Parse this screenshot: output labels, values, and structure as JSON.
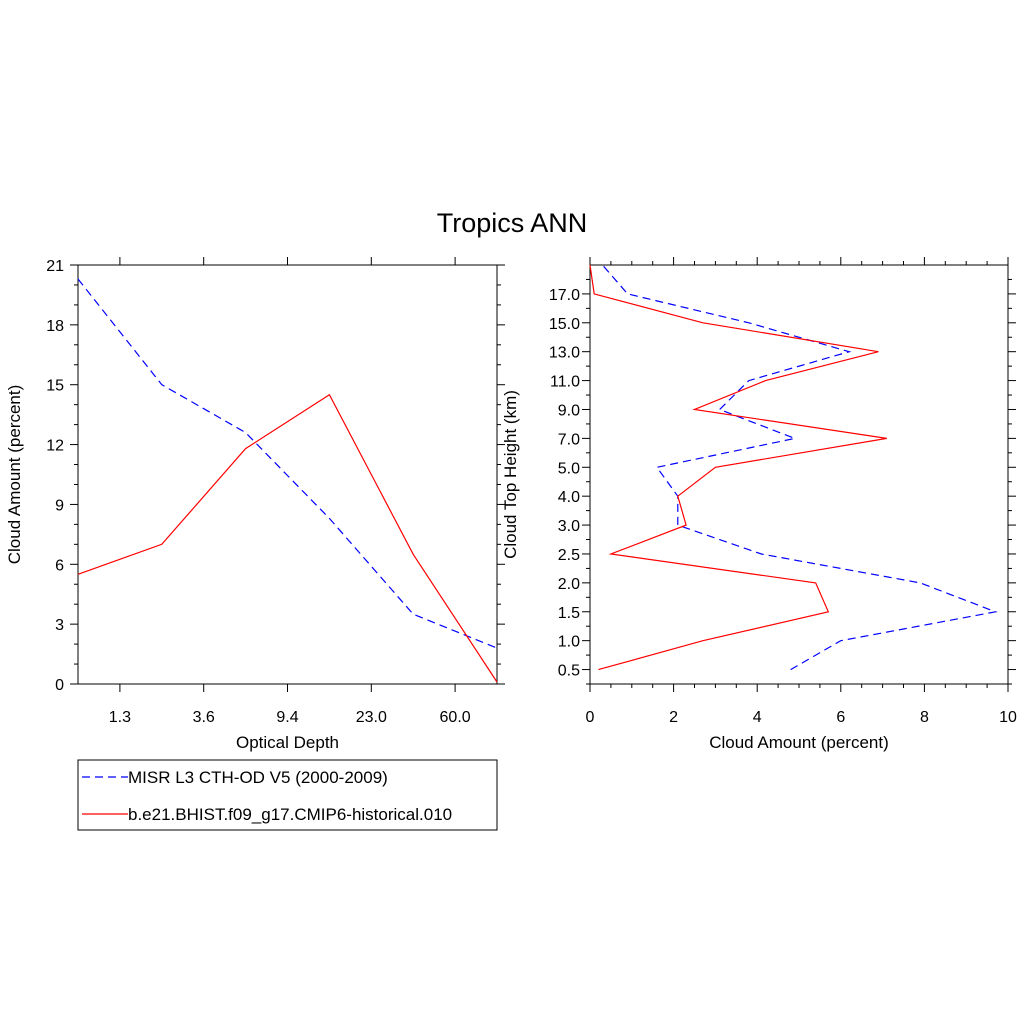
{
  "figure": {
    "title": "Tropics ANN"
  },
  "chart_data": [
    {
      "type": "line",
      "xlabel": "Optical Depth",
      "ylabel": "Cloud Amount (percent)",
      "x_positions": [
        0,
        1,
        2,
        3,
        4,
        5,
        6
      ],
      "x_ticks": [
        {
          "pos": 0.5,
          "label": "1.3"
        },
        {
          "pos": 1.5,
          "label": "3.6"
        },
        {
          "pos": 2.5,
          "label": "9.4"
        },
        {
          "pos": 3.5,
          "label": "23.0"
        },
        {
          "pos": 4.5,
          "label": "60.0"
        }
      ],
      "xlim": [
        0,
        5
      ],
      "ylim": [
        0,
        21
      ],
      "y_ticks": [
        0,
        3,
        6,
        9,
        12,
        15,
        18,
        21
      ],
      "series": [
        {
          "style": "dashed",
          "color": "#0000ff",
          "values": [
            [
              0,
              20.3
            ],
            [
              1,
              15.0
            ],
            [
              2,
              12.6
            ],
            [
              3,
              8.3
            ],
            [
              4,
              3.5
            ],
            [
              5,
              1.8
            ]
          ]
        },
        {
          "style": "solid",
          "color": "#ff0000",
          "values": [
            [
              0,
              5.5
            ],
            [
              1,
              7.0
            ],
            [
              2,
              11.8
            ],
            [
              3,
              14.5
            ],
            [
              4,
              6.5
            ],
            [
              5,
              0.1
            ]
          ]
        }
      ]
    },
    {
      "type": "line",
      "xlabel": "Cloud Amount (percent)",
      "ylabel": "Cloud Top Height (km)",
      "xlim": [
        0,
        10
      ],
      "x_ticks": [
        0,
        2,
        4,
        6,
        8,
        10
      ],
      "y_ticks": [
        "0.5",
        "1.0",
        "1.5",
        "2.0",
        "2.5",
        "3.0",
        "4.0",
        "5.0",
        "7.0",
        "9.0",
        "11.0",
        "13.0",
        "15.0",
        "17.0"
      ],
      "series": [
        {
          "style": "dashed",
          "color": "#0000ff",
          "values": [
            [
              4.8,
              0.25
            ],
            [
              6.0,
              0.75
            ],
            [
              9.7,
              1.25
            ],
            [
              7.9,
              1.75
            ],
            [
              4.1,
              2.25
            ],
            [
              2.1,
              2.75
            ],
            [
              2.1,
              3.5
            ],
            [
              1.6,
              4.5
            ],
            [
              4.9,
              6.0
            ],
            [
              3.1,
              8.0
            ],
            [
              3.8,
              10.0
            ],
            [
              6.2,
              12.0
            ],
            [
              3.8,
              14.0
            ],
            [
              0.9,
              16.0
            ],
            [
              0.3,
              18.0
            ]
          ]
        },
        {
          "style": "solid",
          "color": "#ff0000",
          "values": [
            [
              0.2,
              0.25
            ],
            [
              2.7,
              0.75
            ],
            [
              5.7,
              1.25
            ],
            [
              5.4,
              1.75
            ],
            [
              0.5,
              2.25
            ],
            [
              2.3,
              2.75
            ],
            [
              2.1,
              3.5
            ],
            [
              3.0,
              4.5
            ],
            [
              7.1,
              6.0
            ],
            [
              2.5,
              8.0
            ],
            [
              4.2,
              10.0
            ],
            [
              6.9,
              12.0
            ],
            [
              2.7,
              14.0
            ],
            [
              0.1,
              16.0
            ],
            [
              0.0,
              18.0
            ]
          ]
        }
      ]
    }
  ],
  "legend": {
    "entries": [
      {
        "label": "MISR L3 CTH-OD V5 (2000-2009)",
        "style": "dashed",
        "color": "#0000ff"
      },
      {
        "label": "b.e21.BHIST.f09_g17.CMIP6-historical.010",
        "style": "solid",
        "color": "#ff0000"
      }
    ]
  }
}
